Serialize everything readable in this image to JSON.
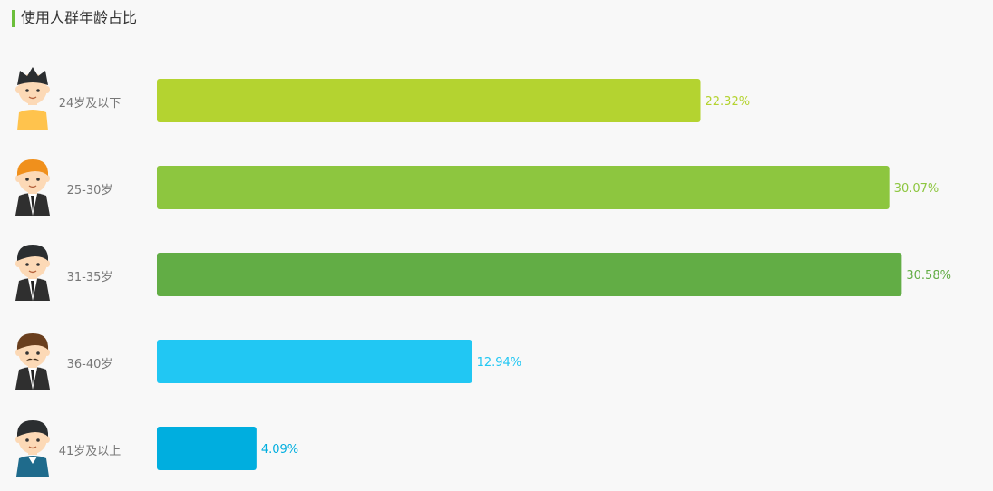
{
  "title": "使用人群年龄占比",
  "chart_data": {
    "type": "bar",
    "orientation": "horizontal",
    "title": "使用人群年龄占比",
    "categories": [
      "24岁及以下",
      "25-30岁",
      "31-35岁",
      "36-40岁",
      "41岁及以上"
    ],
    "values": [
      22.32,
      30.07,
      30.58,
      12.94,
      4.09
    ],
    "value_labels": [
      "22.32%",
      "30.07%",
      "30.58%",
      "12.94%",
      "4.09%"
    ],
    "unit": "%",
    "colors": [
      "#b4d330",
      "#8dc63f",
      "#62ad45",
      "#21c7f3",
      "#00aedf"
    ],
    "category_icons": [
      "boy-avatar-icon",
      "young-man-avatar-icon",
      "suited-man-avatar-icon",
      "mustache-man-avatar-icon",
      "older-man-avatar-icon"
    ],
    "grid": false,
    "legend": "none"
  }
}
